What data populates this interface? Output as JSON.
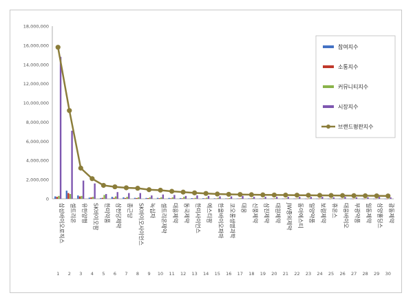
{
  "chart_data": {
    "type": "bar",
    "title": "",
    "xlabel": "",
    "ylabel": "",
    "ylim": [
      0,
      18000000
    ],
    "yticks": [
      "0",
      "2,000,000",
      "4,000,000",
      "6,000,000",
      "8,000,000",
      "10,000,000",
      "12,000,000",
      "14,000,000",
      "16,000,000",
      "18,000,000"
    ],
    "indices": [
      "1",
      "2",
      "3",
      "4",
      "5",
      "6",
      "7",
      "8",
      "9",
      "10",
      "11",
      "12",
      "13",
      "14",
      "15",
      "16",
      "17",
      "18",
      "19",
      "20",
      "21",
      "22",
      "23",
      "24",
      "25",
      "26",
      "27",
      "28",
      "29",
      "30"
    ],
    "categories": [
      "삼성바이오로직스",
      "셀트리온",
      "유한양행",
      "SK바이오팜",
      "한미약품",
      "삼천당제약",
      "종근당",
      "SK바이오사이언스",
      "녹십자",
      "셀트리온제약",
      "대웅제약",
      "동국제약",
      "한미사이언스",
      "에스티팜",
      "한올바이오파마",
      "코오롱생명과학",
      "대웅",
      "신풍제약",
      "삼진제약",
      "대원제약",
      "JW중외제약",
      "동아에스티",
      "일양약품",
      "보령제약",
      "휴온스",
      "대웅바이오",
      "부광약품",
      "일동제약",
      "삼양홀딩스",
      "광동제약"
    ],
    "series": [
      {
        "name": "참여지수",
        "color": "#4472c4",
        "type": "bar",
        "values": [
          250000,
          850000,
          350000,
          120000,
          80000,
          200000,
          150000,
          100000,
          90000,
          100000,
          90000,
          80000,
          70000,
          60000,
          50000,
          40000,
          35000,
          40000,
          35000,
          30000,
          25000,
          25000,
          20000,
          20000,
          20000,
          18000,
          15000,
          15000,
          12000,
          10000
        ]
      },
      {
        "name": "소통지수",
        "color": "#c0392b",
        "type": "bar",
        "values": [
          200000,
          600000,
          250000,
          150000,
          100000,
          100000,
          80000,
          80000,
          70000,
          60000,
          50000,
          50000,
          40000,
          40000,
          30000,
          30000,
          30000,
          30000,
          25000,
          20000,
          20000,
          20000,
          15000,
          15000,
          15000,
          12000,
          10000,
          10000,
          10000,
          8000
        ]
      },
      {
        "name": "커뮤니티지수",
        "color": "#8ab34a",
        "type": "bar",
        "values": [
          300000,
          500000,
          300000,
          200000,
          400000,
          250000,
          200000,
          150000,
          150000,
          150000,
          150000,
          200000,
          100000,
          120000,
          100000,
          80000,
          60000,
          80000,
          60000,
          60000,
          60000,
          50000,
          50000,
          50000,
          50000,
          40000,
          40000,
          30000,
          30000,
          30000
        ]
      },
      {
        "name": "시장지수",
        "color": "#7e57b0",
        "type": "bar",
        "values": [
          14800000,
          7100000,
          1900000,
          1600000,
          500000,
          700000,
          600000,
          600000,
          350000,
          450000,
          400000,
          300000,
          350000,
          300000,
          250000,
          250000,
          300000,
          200000,
          200000,
          200000,
          200000,
          200000,
          200000,
          200000,
          150000,
          200000,
          150000,
          150000,
          200000,
          150000
        ]
      },
      {
        "name": "브랜드평판지수",
        "color": "#8b7d3a",
        "type": "line",
        "values": [
          15800000,
          9200000,
          3200000,
          2100000,
          1400000,
          1250000,
          1150000,
          1100000,
          950000,
          900000,
          780000,
          700000,
          620000,
          560000,
          500000,
          470000,
          450000,
          430000,
          410000,
          400000,
          390000,
          380000,
          370000,
          360000,
          350000,
          340000,
          330000,
          320000,
          310000,
          300000
        ]
      }
    ],
    "legend_position": "right"
  }
}
